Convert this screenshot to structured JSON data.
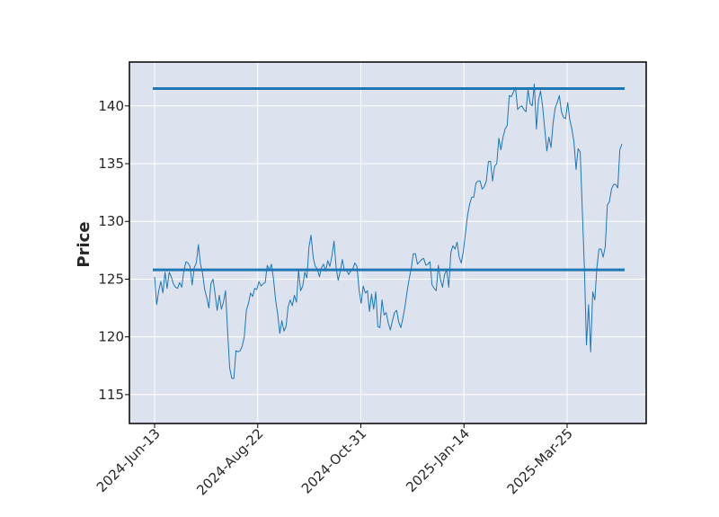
{
  "chart_data": {
    "type": "line",
    "title": "",
    "xlabel": "",
    "ylabel": "Price",
    "ylim": [
      112.5,
      143.8
    ],
    "yticks": [
      115,
      120,
      125,
      130,
      135,
      140
    ],
    "xtick_labels": [
      "2024-Jun-13",
      "2024-Aug-22",
      "2024-Oct-31",
      "2025-Jan-14",
      "2025-Mar-25"
    ],
    "grid": true,
    "legend": "none",
    "colors": {
      "line": "#1f77b4",
      "background": "#dde2ef",
      "grid": "#ffffff"
    },
    "horizontal_lines": [
      {
        "y": 141.5
      },
      {
        "y": 125.8
      }
    ],
    "series": [
      {
        "values": [
          125.2,
          122.8,
          124.0,
          124.8,
          123.8,
          125.6,
          124.2,
          125.6,
          125.2,
          124.6,
          124.3,
          124.2,
          124.7,
          124.3,
          125.7,
          126.5,
          126.4,
          126.1,
          124.5,
          126.0,
          126.4,
          128.0,
          126.3,
          125.5,
          124.1,
          123.4,
          122.5,
          124.6,
          125.0,
          123.7,
          122.3,
          123.6,
          122.4,
          123.0,
          124.0,
          120.5,
          117.3,
          116.4,
          116.4,
          118.8,
          118.7,
          118.8,
          119.2,
          120.0,
          122.3,
          122.9,
          123.8,
          123.5,
          124.2,
          124.1,
          124.8,
          124.4,
          124.6,
          124.7,
          126.2,
          125.8,
          126.3,
          125.0,
          123.2,
          122.0,
          120.3,
          121.4,
          120.5,
          120.9,
          122.6,
          123.2,
          122.7,
          123.6,
          123.0,
          125.8,
          124.0,
          124.4,
          125.6,
          125.1,
          127.8,
          128.8,
          126.9,
          126.1,
          125.9,
          125.2,
          126.0,
          126.3,
          125.7,
          126.6,
          126.1,
          127.0,
          128.3,
          126.0,
          124.9,
          125.7,
          126.7,
          125.7,
          125.8,
          125.4,
          125.7,
          125.9,
          126.4,
          126.1,
          124.1,
          122.9,
          124.4,
          123.8,
          124.0,
          122.2,
          123.7,
          122.4,
          123.9,
          120.9,
          120.8,
          123.2,
          121.9,
          122.1,
          121.2,
          120.6,
          121.4,
          122.1,
          122.3,
          121.3,
          120.8,
          121.6,
          122.6,
          123.9,
          125.0,
          125.9,
          127.2,
          127.2,
          126.3,
          126.5,
          126.7,
          126.8,
          126.2,
          126.3,
          126.5,
          124.5,
          124.2,
          124.0,
          126.2,
          125.0,
          124.3,
          125.4,
          125.8,
          124.3,
          127.3,
          127.9,
          127.6,
          128.2,
          126.9,
          126.4,
          127.4,
          129.0,
          130.5,
          131.5,
          132.1,
          132.1,
          133.3,
          133.5,
          133.5,
          132.8,
          133.0,
          133.5,
          135.2,
          135.2,
          133.5,
          134.8,
          135.0,
          137.2,
          136.2,
          137.3,
          138.0,
          138.3,
          140.9,
          140.8,
          141.2,
          141.6,
          139.7,
          139.9,
          140.0,
          139.7,
          139.5,
          141.4,
          140.2,
          140.0,
          141.9,
          138.0,
          140.5,
          141.3,
          139.9,
          138.0,
          136.1,
          137.3,
          136.4,
          138.5,
          139.8,
          140.3,
          140.9,
          139.5,
          139.0,
          138.9,
          140.3,
          138.8,
          138.0,
          136.9,
          134.5,
          136.3,
          136.0,
          131.0,
          126.0,
          119.3,
          122.8,
          118.7,
          123.9,
          123.2,
          126.0,
          127.6,
          127.6,
          126.9,
          127.8,
          131.4,
          131.7,
          132.8,
          133.2,
          133.2,
          132.9,
          136.2,
          136.7
        ]
      }
    ]
  }
}
